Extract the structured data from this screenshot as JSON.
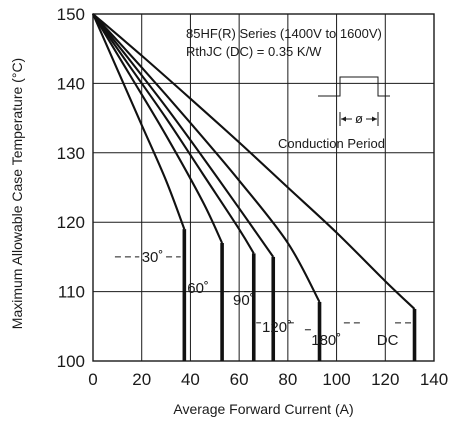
{
  "chart_data": {
    "type": "line",
    "title": "",
    "xlabel": "Average Forward Current (A)",
    "ylabel": "Maximum Allowable Case Temperature (°C)",
    "xlim": [
      0,
      140
    ],
    "ylim": [
      100,
      150
    ],
    "xticks": [
      "0",
      "20",
      "40",
      "60",
      "80",
      "100",
      "120",
      "140"
    ],
    "yticks": [
      "100",
      "110",
      "120",
      "130",
      "140",
      "150"
    ],
    "grid": true,
    "annotations": {
      "series_line": "85HF(R) Series (1400V to 1600V)",
      "rth_line": "RthJC  (DC) = 0.35 K/W",
      "conduction_label": "Conduction Period",
      "phi_symbol": "ø"
    },
    "series": [
      {
        "name": "30°",
        "label": "30˚",
        "x": [
          0,
          10,
          20,
          30,
          37.5
        ],
        "y": [
          150,
          142,
          134,
          126,
          119
        ]
      },
      {
        "name": "60°",
        "label": "60˚",
        "x": [
          0,
          15,
          30,
          45,
          53
        ],
        "y": [
          150,
          141.3,
          132.5,
          123,
          117
        ]
      },
      {
        "name": "90°",
        "label": "90˚",
        "x": [
          0,
          15,
          30,
          45,
          60,
          66
        ],
        "y": [
          150,
          142.5,
          135,
          127,
          119,
          115.5
        ]
      },
      {
        "name": "120°",
        "label": "120˚",
        "x": [
          0,
          15,
          30,
          45,
          60,
          74
        ],
        "y": [
          150,
          143.4,
          136.6,
          129.4,
          122,
          115
        ]
      },
      {
        "name": "180°",
        "label": "180˚",
        "x": [
          0,
          20,
          40,
          60,
          80,
          93
        ],
        "y": [
          150,
          142.3,
          134.3,
          126,
          117,
          108.5
        ]
      },
      {
        "name": "DC",
        "label": "DC",
        "x": [
          0,
          20,
          40,
          60,
          80,
          100,
          120,
          132
        ],
        "y": [
          150,
          144,
          137.8,
          131.5,
          125,
          118.5,
          111.5,
          107.5
        ]
      }
    ]
  }
}
